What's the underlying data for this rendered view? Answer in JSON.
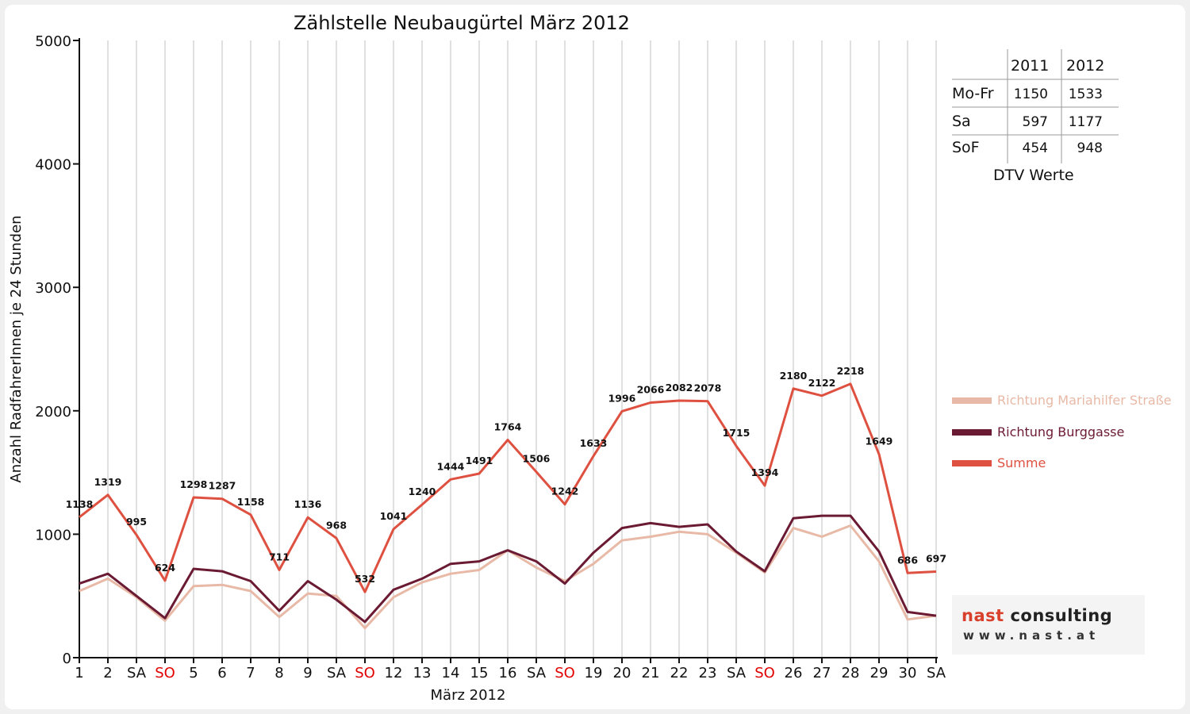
{
  "chart_data": {
    "type": "line",
    "title": "Zählstelle Neubaugürtel März 2012",
    "xlabel": "März 2012",
    "ylabel": "Anzahl RadfahrerInnen je 24 Stunden",
    "ylim": [
      0,
      5000
    ],
    "yticks": [
      0,
      1000,
      2000,
      3000,
      4000,
      5000
    ],
    "grid": true,
    "legend_position": "right",
    "categories": [
      "1",
      "2",
      "SA",
      "SO",
      "5",
      "6",
      "7",
      "8",
      "9",
      "SA",
      "SO",
      "12",
      "13",
      "14",
      "15",
      "16",
      "SA",
      "SO",
      "19",
      "20",
      "21",
      "22",
      "23",
      "SA",
      "SO",
      "26",
      "27",
      "28",
      "29",
      "30",
      "SA"
    ],
    "sunday_label_color": "#e00000",
    "series": [
      {
        "name": "Richtung Mariahilfer Straße",
        "color": "#e8b9a6",
        "values": [
          540,
          640,
          490,
          300,
          580,
          590,
          540,
          330,
          520,
          500,
          240,
          490,
          610,
          680,
          710,
          870,
          730,
          620,
          760,
          950,
          980,
          1020,
          1000,
          850,
          690,
          1050,
          980,
          1070,
          780,
          310,
          340
        ]
      },
      {
        "name": "Richtung Burggasse",
        "color": "#6b1a33",
        "values": [
          600,
          680,
          500,
          320,
          720,
          700,
          620,
          380,
          620,
          470,
          290,
          550,
          640,
          760,
          780,
          870,
          780,
          600,
          850,
          1050,
          1090,
          1060,
          1080,
          860,
          700,
          1130,
          1150,
          1150,
          860,
          370,
          340
        ]
      },
      {
        "name": "Summe",
        "color": "#de5040",
        "values": [
          1138,
          1319,
          995,
          624,
          1298,
          1287,
          1158,
          711,
          1136,
          968,
          532,
          1041,
          1240,
          1444,
          1491,
          1764,
          1506,
          1242,
          1633,
          1996,
          2066,
          2082,
          2078,
          1715,
          1394,
          2180,
          2122,
          2218,
          1649,
          686,
          697
        ],
        "data_labels": [
          "1138",
          "1319",
          "995",
          "624",
          "1298",
          "1287",
          "1158",
          "711",
          "1136",
          "968",
          "532",
          "1041",
          "1240",
          "1444",
          "1491",
          "1764",
          "1506",
          "1242",
          "1633",
          "1996",
          "2066",
          "2082",
          "2078",
          "1715",
          "1394",
          "2180",
          "2122",
          "2218",
          "1649",
          "686",
          "697"
        ]
      }
    ]
  },
  "dtv_table": {
    "caption": "DTV Werte",
    "columns": [
      "2011",
      "2012"
    ],
    "rows": [
      {
        "label": "Mo-Fr",
        "v2011": "1150",
        "v2012": "1533"
      },
      {
        "label": "Sa",
        "v2011": "597",
        "v2012": "1177"
      },
      {
        "label": "SoF",
        "v2011": "454",
        "v2012": "948"
      }
    ]
  },
  "logo": {
    "word1": "nast",
    "word2": "consulting",
    "url": "www.nast.at",
    "accent_color": "#d9402b"
  }
}
